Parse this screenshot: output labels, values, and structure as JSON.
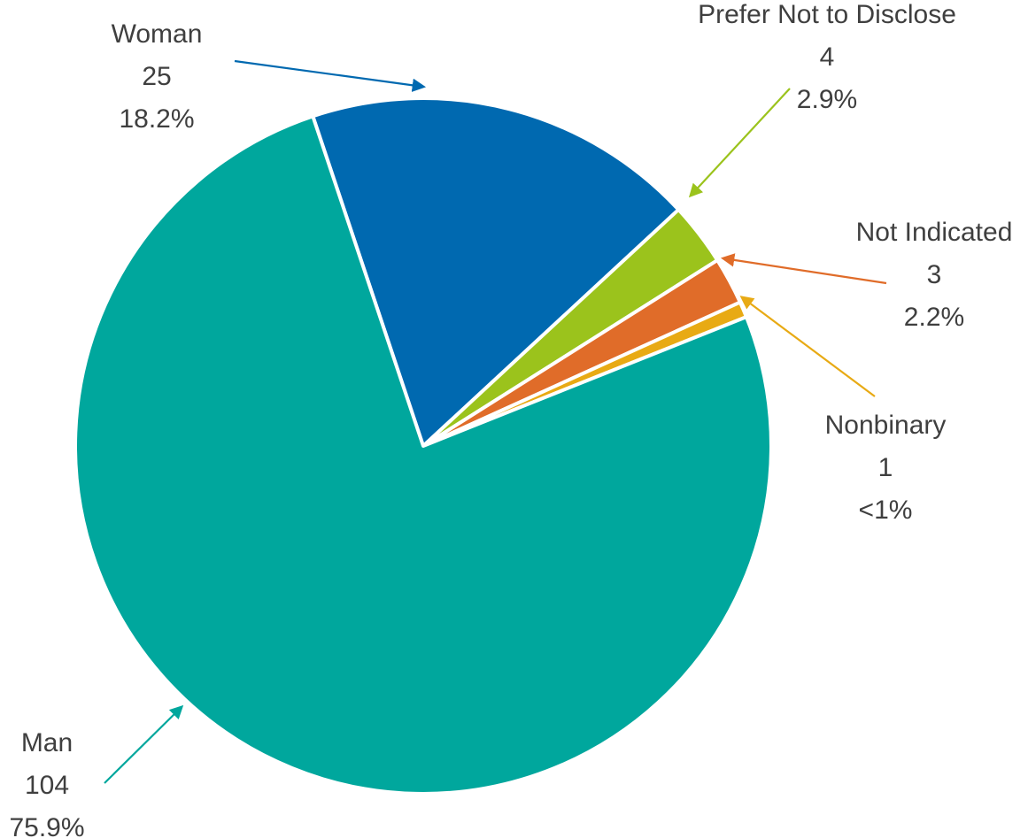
{
  "chart_data": {
    "type": "pie",
    "slices": [
      {
        "label": "Woman",
        "count": "25",
        "percent": "18.2%",
        "value": 25,
        "color": "#0069B0"
      },
      {
        "label": "Prefer Not to Disclose",
        "count": "4",
        "percent": "2.9%",
        "value": 4,
        "color": "#9BC31C"
      },
      {
        "label": "Not Indicated",
        "count": "3",
        "percent": "2.2%",
        "value": 3,
        "color": "#E06C29"
      },
      {
        "label": "Nonbinary",
        "count": "1",
        "percent": "<1%",
        "value": 1,
        "color": "#E8AA14"
      },
      {
        "label": "Man",
        "count": "104",
        "percent": "75.9%",
        "value": 104,
        "color": "#00A79D"
      }
    ]
  }
}
